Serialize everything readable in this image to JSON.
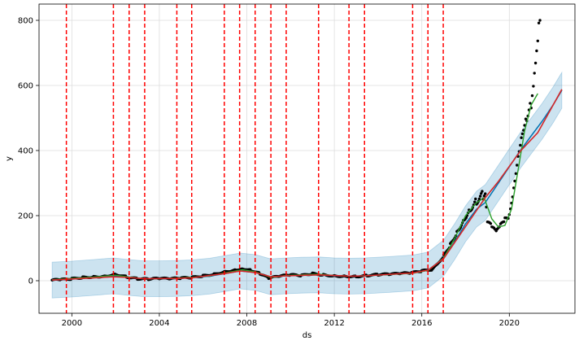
{
  "chart_data": {
    "type": "line",
    "xlabel": "ds",
    "ylabel": "y",
    "xlim": [
      1998.5,
      2023.0
    ],
    "ylim": [
      -100,
      850
    ],
    "x_ticks": [
      {
        "value": 2000,
        "label": "2000"
      },
      {
        "value": 2004,
        "label": "2004"
      },
      {
        "value": 2008,
        "label": "2008"
      },
      {
        "value": 2012,
        "label": "2012"
      },
      {
        "value": 2016,
        "label": "2016"
      },
      {
        "value": 2020,
        "label": "2020"
      }
    ],
    "y_ticks": [
      {
        "value": 0,
        "label": "0"
      },
      {
        "value": 200,
        "label": "200"
      },
      {
        "value": 400,
        "label": "400"
      },
      {
        "value": 600,
        "label": "600"
      },
      {
        "value": 800,
        "label": "800"
      }
    ],
    "grid": true,
    "colors": {
      "observed": "#000000",
      "forecast": "#0072B2",
      "interval": "#0072B2",
      "trend": "#d62728",
      "smooth": "#2ca02c",
      "changepoint": "#ff0000",
      "grid": "#dddddd"
    },
    "changepoints": [
      1999.75,
      2001.9,
      2002.62,
      2003.33,
      2004.8,
      2005.48,
      2006.97,
      2007.67,
      2008.38,
      2009.1,
      2009.8,
      2011.28,
      2012.67,
      2013.38,
      2015.58,
      2016.28,
      2016.98
    ],
    "observed": [
      [
        1999.1,
        2
      ],
      [
        1999.5,
        3
      ],
      [
        2000.0,
        6
      ],
      [
        2000.5,
        10
      ],
      [
        2001.0,
        12
      ],
      [
        2001.5,
        14
      ],
      [
        2002.0,
        20
      ],
      [
        2002.5,
        12
      ],
      [
        2003.0,
        6
      ],
      [
        2003.5,
        5
      ],
      [
        2004.0,
        7
      ],
      [
        2004.5,
        6
      ],
      [
        2005.0,
        8
      ],
      [
        2005.5,
        10
      ],
      [
        2006.0,
        15
      ],
      [
        2006.5,
        20
      ],
      [
        2007.0,
        28
      ],
      [
        2007.5,
        33
      ],
      [
        2007.8,
        38
      ],
      [
        2008.2,
        32
      ],
      [
        2008.6,
        22
      ],
      [
        2009.0,
        8
      ],
      [
        2009.5,
        14
      ],
      [
        2010.0,
        18
      ],
      [
        2010.5,
        16
      ],
      [
        2011.0,
        22
      ],
      [
        2011.5,
        18
      ],
      [
        2012.0,
        15
      ],
      [
        2012.5,
        14
      ],
      [
        2013.0,
        13
      ],
      [
        2013.5,
        16
      ],
      [
        2014.0,
        19
      ],
      [
        2014.5,
        20
      ],
      [
        2015.0,
        22
      ],
      [
        2015.5,
        24
      ],
      [
        2016.0,
        30
      ],
      [
        2016.5,
        35
      ],
      [
        2017.0,
        75
      ],
      [
        2017.3,
        110
      ],
      [
        2017.6,
        150
      ],
      [
        2017.9,
        190
      ],
      [
        2018.2,
        225
      ],
      [
        2018.5,
        250
      ],
      [
        2018.8,
        265
      ],
      [
        2018.9,
        275
      ],
      [
        2019.0,
        180
      ],
      [
        2019.2,
        160
      ],
      [
        2019.4,
        145
      ],
      [
        2019.6,
        165
      ],
      [
        2019.8,
        185
      ],
      [
        2020.0,
        200
      ],
      [
        2020.2,
        290
      ],
      [
        2020.4,
        400
      ],
      [
        2020.6,
        480
      ],
      [
        2020.8,
        520
      ],
      [
        2021.0,
        550
      ],
      [
        2021.1,
        600
      ],
      [
        2021.2,
        650
      ],
      [
        2021.3,
        700
      ],
      [
        2021.4,
        800
      ]
    ],
    "forecast": [
      [
        1999.1,
        2
      ],
      [
        2000.0,
        5
      ],
      [
        2001.0,
        10
      ],
      [
        2001.9,
        15
      ],
      [
        2002.6,
        10
      ],
      [
        2003.3,
        6
      ],
      [
        2004.0,
        6
      ],
      [
        2004.8,
        7
      ],
      [
        2005.5,
        9
      ],
      [
        2006.3,
        14
      ],
      [
        2007.0,
        22
      ],
      [
        2007.7,
        30
      ],
      [
        2008.4,
        25
      ],
      [
        2009.1,
        12
      ],
      [
        2009.8,
        15
      ],
      [
        2010.5,
        17
      ],
      [
        2011.3,
        18
      ],
      [
        2012.0,
        15
      ],
      [
        2012.7,
        14
      ],
      [
        2013.4,
        15
      ],
      [
        2014.5,
        19
      ],
      [
        2015.6,
        24
      ],
      [
        2016.3,
        33
      ],
      [
        2017.0,
        70
      ],
      [
        2017.5,
        120
      ],
      [
        2018.0,
        175
      ],
      [
        2018.5,
        220
      ],
      [
        2018.9,
        240
      ],
      [
        2019.5,
        300
      ],
      [
        2020.0,
        350
      ],
      [
        2020.5,
        400
      ],
      [
        2021.0,
        445
      ],
      [
        2021.5,
        490
      ],
      [
        2022.0,
        540
      ],
      [
        2022.4,
        585
      ]
    ],
    "trend": [
      [
        1999.1,
        2
      ],
      [
        2001.9,
        12
      ],
      [
        2002.6,
        10
      ],
      [
        2003.3,
        6
      ],
      [
        2004.8,
        7
      ],
      [
        2005.5,
        9
      ],
      [
        2007.0,
        22
      ],
      [
        2007.7,
        30
      ],
      [
        2008.4,
        25
      ],
      [
        2009.1,
        12
      ],
      [
        2009.8,
        15
      ],
      [
        2011.3,
        18
      ],
      [
        2012.7,
        14
      ],
      [
        2013.4,
        15
      ],
      [
        2015.6,
        24
      ],
      [
        2016.3,
        33
      ],
      [
        2017.0,
        68
      ],
      [
        2018.9,
        255
      ],
      [
        2019.5,
        305
      ],
      [
        2020.5,
        398
      ],
      [
        2021.3,
        455
      ],
      [
        2022.4,
        588
      ]
    ],
    "smooth": [
      [
        1999.1,
        3
      ],
      [
        2000.0,
        7
      ],
      [
        2001.0,
        11
      ],
      [
        2002.0,
        17
      ],
      [
        2002.6,
        11
      ],
      [
        2003.3,
        6
      ],
      [
        2004.0,
        6
      ],
      [
        2004.8,
        8
      ],
      [
        2005.5,
        10
      ],
      [
        2006.3,
        15
      ],
      [
        2007.0,
        24
      ],
      [
        2007.8,
        34
      ],
      [
        2008.4,
        27
      ],
      [
        2009.1,
        10
      ],
      [
        2009.8,
        16
      ],
      [
        2010.5,
        18
      ],
      [
        2011.3,
        20
      ],
      [
        2012.0,
        16
      ],
      [
        2012.7,
        14
      ],
      [
        2013.4,
        15
      ],
      [
        2014.5,
        19
      ],
      [
        2015.6,
        23
      ],
      [
        2016.3,
        32
      ],
      [
        2017.0,
        70
      ],
      [
        2017.5,
        130
      ],
      [
        2018.0,
        200
      ],
      [
        2018.5,
        240
      ],
      [
        2018.85,
        255
      ],
      [
        2019.2,
        190
      ],
      [
        2019.5,
        165
      ],
      [
        2019.8,
        170
      ],
      [
        2020.1,
        220
      ],
      [
        2020.4,
        340
      ],
      [
        2020.7,
        460
      ],
      [
        2021.0,
        540
      ],
      [
        2021.3,
        575
      ]
    ],
    "interval_halfwidth_start": 55,
    "interval_halfwidth_end": 55
  }
}
